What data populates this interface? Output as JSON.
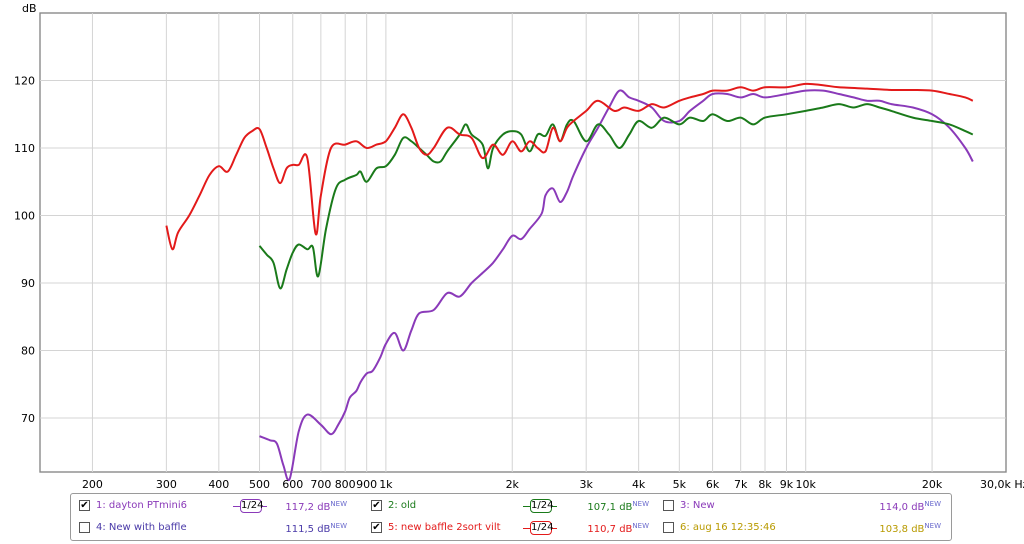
{
  "chart_data": {
    "type": "line",
    "ylabel": "dB",
    "x_unit_label": "Hz",
    "x_scale": "log",
    "xlim": [
      150,
      30000
    ],
    "ylim": [
      62,
      130
    ],
    "grid": true,
    "y_ticks": [
      70,
      80,
      90,
      100,
      110,
      120
    ],
    "y_tick_labels": [
      "70",
      "80",
      "90",
      "100",
      "110",
      "120"
    ],
    "x_ticks": [
      200,
      300,
      400,
      500,
      600,
      700,
      800,
      900,
      1000,
      2000,
      3000,
      4000,
      5000,
      6000,
      7000,
      8000,
      9000,
      10000,
      20000,
      30000
    ],
    "x_tick_labels": [
      "200",
      "300",
      "400",
      "500",
      "600",
      "700",
      "800",
      "900",
      "1k",
      "2k",
      "3k",
      "4k",
      "5k",
      "6k",
      "7k",
      "8k",
      "9k",
      "10k",
      "20k",
      "30,0k Hz"
    ],
    "series": [
      {
        "name": "dayton PTmini6",
        "color": "#8a3ab9",
        "points": [
          [
            500,
            67.3
          ],
          [
            530,
            66.7
          ],
          [
            550,
            66.2
          ],
          [
            570,
            63
          ],
          [
            590,
            61
          ],
          [
            620,
            68
          ],
          [
            650,
            70.5
          ],
          [
            700,
            69
          ],
          [
            740,
            67.6
          ],
          [
            770,
            69
          ],
          [
            800,
            71
          ],
          [
            820,
            73
          ],
          [
            850,
            74
          ],
          [
            870,
            75.3
          ],
          [
            900,
            76.6
          ],
          [
            930,
            77
          ],
          [
            970,
            79
          ],
          [
            1000,
            81
          ],
          [
            1050,
            82.6
          ],
          [
            1100,
            80
          ],
          [
            1150,
            83
          ],
          [
            1200,
            85.5
          ],
          [
            1300,
            86
          ],
          [
            1400,
            88.5
          ],
          [
            1500,
            88
          ],
          [
            1600,
            90
          ],
          [
            1700,
            91.5
          ],
          [
            1800,
            93
          ],
          [
            1900,
            95
          ],
          [
            2000,
            97
          ],
          [
            2100,
            96.5
          ],
          [
            2200,
            98
          ],
          [
            2350,
            100.3
          ],
          [
            2400,
            103
          ],
          [
            2500,
            104
          ],
          [
            2600,
            102
          ],
          [
            2700,
            103.5
          ],
          [
            2800,
            106
          ],
          [
            3000,
            110
          ],
          [
            3200,
            113
          ],
          [
            3400,
            116
          ],
          [
            3600,
            118.5
          ],
          [
            3800,
            117.5
          ],
          [
            4000,
            117
          ],
          [
            4300,
            116
          ],
          [
            4600,
            114
          ],
          [
            5000,
            114
          ],
          [
            5300,
            115.5
          ],
          [
            5700,
            117
          ],
          [
            6000,
            118
          ],
          [
            6500,
            118
          ],
          [
            7000,
            117.5
          ],
          [
            7500,
            118
          ],
          [
            8000,
            117.5
          ],
          [
            9000,
            118
          ],
          [
            10000,
            118.5
          ],
          [
            11000,
            118.5
          ],
          [
            12000,
            118
          ],
          [
            13000,
            117.5
          ],
          [
            14000,
            117
          ],
          [
            15000,
            117
          ],
          [
            16000,
            116.5
          ],
          [
            18000,
            116
          ],
          [
            20000,
            115
          ],
          [
            22000,
            113
          ],
          [
            24000,
            110
          ],
          [
            25000,
            108
          ]
        ]
      },
      {
        "name": "old",
        "color": "#1a7a1a",
        "points": [
          [
            500,
            95.5
          ],
          [
            520,
            94.2
          ],
          [
            540,
            93
          ],
          [
            560,
            89.2
          ],
          [
            580,
            92
          ],
          [
            600,
            94.5
          ],
          [
            620,
            95.7
          ],
          [
            650,
            95
          ],
          [
            670,
            95.3
          ],
          [
            690,
            91
          ],
          [
            720,
            98
          ],
          [
            760,
            104
          ],
          [
            800,
            105.3
          ],
          [
            850,
            106
          ],
          [
            870,
            106.5
          ],
          [
            900,
            105
          ],
          [
            950,
            107
          ],
          [
            1000,
            107.3
          ],
          [
            1050,
            109
          ],
          [
            1100,
            111.5
          ],
          [
            1150,
            111
          ],
          [
            1200,
            110
          ],
          [
            1250,
            109
          ],
          [
            1300,
            108
          ],
          [
            1350,
            108
          ],
          [
            1400,
            109.5
          ],
          [
            1500,
            112
          ],
          [
            1550,
            113.5
          ],
          [
            1600,
            112
          ],
          [
            1700,
            110.5
          ],
          [
            1750,
            107
          ],
          [
            1800,
            110
          ],
          [
            1900,
            112
          ],
          [
            2000,
            112.5
          ],
          [
            2100,
            112
          ],
          [
            2200,
            109.5
          ],
          [
            2300,
            112
          ],
          [
            2400,
            111.8
          ],
          [
            2500,
            113.5
          ],
          [
            2600,
            111
          ],
          [
            2700,
            113.5
          ],
          [
            2800,
            114
          ],
          [
            3000,
            111
          ],
          [
            3200,
            113.5
          ],
          [
            3400,
            112
          ],
          [
            3600,
            110
          ],
          [
            3800,
            112
          ],
          [
            4000,
            114
          ],
          [
            4300,
            113
          ],
          [
            4600,
            114.5
          ],
          [
            5000,
            113.5
          ],
          [
            5300,
            114.5
          ],
          [
            5700,
            114
          ],
          [
            6000,
            115
          ],
          [
            6500,
            114
          ],
          [
            7000,
            114.5
          ],
          [
            7500,
            113.5
          ],
          [
            8000,
            114.5
          ],
          [
            9000,
            115
          ],
          [
            10000,
            115.5
          ],
          [
            11000,
            116
          ],
          [
            12000,
            116.5
          ],
          [
            13000,
            116
          ],
          [
            14000,
            116.5
          ],
          [
            15000,
            116
          ],
          [
            16000,
            115.5
          ],
          [
            18000,
            114.5
          ],
          [
            20000,
            114
          ],
          [
            22000,
            113.5
          ],
          [
            24000,
            112.5
          ],
          [
            25000,
            112
          ]
        ]
      },
      {
        "name": "new baffle 2sort vilt",
        "color": "#e31a1a",
        "points": [
          [
            300,
            98.5
          ],
          [
            310,
            95
          ],
          [
            320,
            97.5
          ],
          [
            340,
            100
          ],
          [
            360,
            103
          ],
          [
            380,
            106
          ],
          [
            400,
            107.3
          ],
          [
            420,
            106.5
          ],
          [
            440,
            109
          ],
          [
            460,
            111.5
          ],
          [
            480,
            112.5
          ],
          [
            500,
            112.8
          ],
          [
            520,
            110
          ],
          [
            540,
            107
          ],
          [
            560,
            104.8
          ],
          [
            580,
            107
          ],
          [
            600,
            107.5
          ],
          [
            620,
            107.5
          ],
          [
            650,
            108.5
          ],
          [
            680,
            97.3
          ],
          [
            700,
            103
          ],
          [
            740,
            110
          ],
          [
            800,
            110.5
          ],
          [
            850,
            111
          ],
          [
            900,
            110
          ],
          [
            950,
            110.5
          ],
          [
            1000,
            111
          ],
          [
            1050,
            113
          ],
          [
            1100,
            115
          ],
          [
            1150,
            113
          ],
          [
            1200,
            110
          ],
          [
            1250,
            109
          ],
          [
            1300,
            110
          ],
          [
            1400,
            113
          ],
          [
            1500,
            112
          ],
          [
            1600,
            111.5
          ],
          [
            1700,
            108.5
          ],
          [
            1800,
            110.5
          ],
          [
            1900,
            109
          ],
          [
            2000,
            111
          ],
          [
            2100,
            109.5
          ],
          [
            2200,
            111
          ],
          [
            2300,
            110
          ],
          [
            2400,
            109.5
          ],
          [
            2500,
            113
          ],
          [
            2600,
            111
          ],
          [
            2700,
            113
          ],
          [
            2800,
            114
          ],
          [
            3000,
            115.5
          ],
          [
            3200,
            117
          ],
          [
            3500,
            115.5
          ],
          [
            3700,
            116
          ],
          [
            4000,
            115.5
          ],
          [
            4300,
            116.5
          ],
          [
            4600,
            116
          ],
          [
            5000,
            117
          ],
          [
            5300,
            117.5
          ],
          [
            5700,
            118
          ],
          [
            6000,
            118.5
          ],
          [
            6500,
            118.5
          ],
          [
            7000,
            119
          ],
          [
            7500,
            118.5
          ],
          [
            8000,
            119
          ],
          [
            9000,
            119
          ],
          [
            10000,
            119.5
          ],
          [
            11000,
            119.3
          ],
          [
            12000,
            119
          ],
          [
            14000,
            118.8
          ],
          [
            16000,
            118.6
          ],
          [
            18000,
            118.6
          ],
          [
            20000,
            118.5
          ],
          [
            22000,
            118
          ],
          [
            24000,
            117.5
          ],
          [
            25000,
            117
          ]
        ]
      }
    ],
    "legend": [
      {
        "index": "1",
        "name": "dayton PTmini6",
        "checked": true,
        "smoothing": "1/24",
        "level": "117,2 dB",
        "badge": "NEW",
        "color": "#8a3ab9"
      },
      {
        "index": "2",
        "name": "old",
        "checked": true,
        "smoothing": "1/24",
        "level": "107,1 dB",
        "badge": "NEW",
        "color": "#1a7a1a"
      },
      {
        "index": "3",
        "name": "New",
        "checked": false,
        "smoothing": "",
        "level": "114,0 dB",
        "badge": "NEW",
        "color": "#8a3ab9"
      },
      {
        "index": "4",
        "name": "New with baffle",
        "checked": false,
        "smoothing": "",
        "level": "111,5 dB",
        "badge": "NEW",
        "color": "#4a3aa8"
      },
      {
        "index": "5",
        "name": "new baffle 2sort vilt",
        "checked": true,
        "smoothing": "1/24",
        "level": "110,7 dB",
        "badge": "NEW",
        "color": "#e31a1a"
      },
      {
        "index": "6",
        "name": "aug 16 12:35:46",
        "checked": false,
        "smoothing": "",
        "level": "103,8 dB",
        "badge": "NEW",
        "color": "#b89a00"
      }
    ]
  },
  "legend_text": {
    "e1_label": "1: dayton PTmini6",
    "e2_label": "2: old",
    "e3_label": "3: New",
    "e4_label": "4: New with baffle",
    "e5_label": "5: new baffle 2sort vilt",
    "e6_label": "6: aug 16 12:35:46",
    "smoothing_label": "1/24",
    "badge": "NEW",
    "check_mark": "✔"
  }
}
